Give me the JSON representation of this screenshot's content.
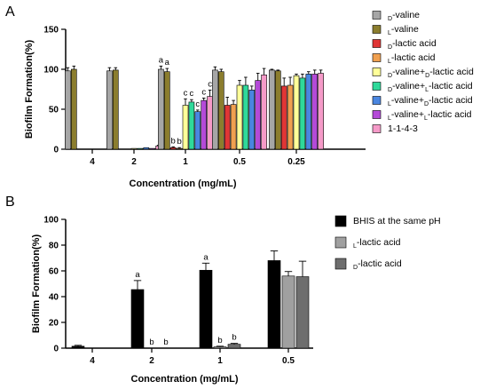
{
  "chart_data": [
    {
      "panel": "A",
      "type": "bar",
      "xlabel": "Concentration (mg/mL)",
      "ylabel": "Biofilm Formation(%)",
      "ylim": [
        0,
        150
      ],
      "yticks": [
        0,
        50,
        100,
        150
      ],
      "categories": [
        "4",
        "2",
        "1",
        "0.5",
        "0.25"
      ],
      "series": [
        {
          "name": "D-valine",
          "prefix": "D",
          "base": "-valine",
          "color": "#a6a6a6",
          "values": [
            98,
            98,
            100,
            99,
            99
          ],
          "errors": [
            4,
            4,
            4,
            4,
            1
          ],
          "labels": [
            "",
            "",
            "a",
            "",
            ""
          ]
        },
        {
          "name": "L-valine",
          "prefix": "L",
          "base": "-valine",
          "color": "#8b7d2e",
          "values": [
            100,
            99,
            97,
            97,
            98
          ],
          "errors": [
            4,
            3,
            4,
            3,
            1
          ],
          "labels": [
            "",
            "",
            "a",
            "",
            ""
          ]
        },
        {
          "name": "D-lactic acid",
          "prefix": "D",
          "base": "-lactic acid",
          "color": "#e03636",
          "values": [
            0,
            0,
            2,
            55,
            79
          ],
          "errors": [
            0,
            0,
            1,
            10,
            10
          ],
          "labels": [
            "",
            "",
            "b",
            "",
            ""
          ]
        },
        {
          "name": "L-lactic acid",
          "prefix": "L",
          "base": "-lactic acid",
          "color": "#f0a050",
          "values": [
            0,
            0,
            1,
            56,
            80
          ],
          "errors": [
            0,
            0,
            1,
            5,
            10
          ],
          "labels": [
            "",
            "",
            "b",
            "",
            ""
          ]
        },
        {
          "name": "D-valine+D-lactic acid",
          "prefix": "D",
          "base": "-valine+",
          "prefix2": "D",
          "base2": "-lactic acid",
          "color": "#ffff99",
          "values": [
            0,
            1,
            55,
            80,
            92
          ],
          "errors": [
            0,
            0,
            8,
            6,
            2
          ],
          "labels": [
            "",
            "",
            "c",
            "",
            ""
          ]
        },
        {
          "name": "D-valine+L-lactic acid",
          "prefix": "D",
          "base": "-valine+",
          "prefix2": "L",
          "base2": "-lactic acid",
          "color": "#2fd99a",
          "values": [
            0,
            1,
            59,
            80,
            89
          ],
          "errors": [
            0,
            0,
            3,
            10,
            5
          ],
          "labels": [
            "",
            "",
            "c",
            "",
            ""
          ]
        },
        {
          "name": "L-valine+D-lactic acid",
          "prefix": "L",
          "base": "-valine+",
          "prefix2": "D",
          "base2": "-lactic acid",
          "color": "#4a86e0",
          "values": [
            0,
            2,
            47,
            74,
            94
          ],
          "errors": [
            0,
            0,
            2,
            5,
            3
          ],
          "labels": [
            "",
            "",
            "c",
            "",
            ""
          ]
        },
        {
          "name": "L-valine+L-lactic acid",
          "prefix": "L",
          "base": "-valine+",
          "prefix2": "L",
          "base2": "-lactic acid",
          "color": "#b44ad8",
          "values": [
            0,
            1,
            61,
            86,
            94
          ],
          "errors": [
            0,
            0,
            3,
            9,
            5
          ],
          "labels": [
            "",
            "",
            "c",
            "",
            ""
          ]
        },
        {
          "name": "1-1-4-3",
          "prefix": "",
          "base": "1-1-4-3",
          "color": "#f59ac8",
          "values": [
            0,
            4,
            66,
            93,
            95
          ],
          "errors": [
            0,
            1,
            8,
            8,
            4
          ],
          "labels": [
            "",
            "",
            "c",
            "",
            ""
          ]
        }
      ]
    },
    {
      "panel": "B",
      "type": "bar",
      "xlabel": "Concentration (mg/mL)",
      "ylabel": "Biofilm Formation(%)",
      "ylim": [
        0,
        100
      ],
      "yticks": [
        0,
        20,
        40,
        60,
        80,
        100
      ],
      "categories": [
        "4",
        "2",
        "1",
        "0.5"
      ],
      "series": [
        {
          "name": "BHIS at the same pH",
          "prefix": "",
          "base": "BHIS at the same pH",
          "color": "#000000",
          "values": [
            1.5,
            45.5,
            60.5,
            68
          ],
          "errors": [
            0.7,
            7,
            5.5,
            7.5
          ],
          "labels": [
            "",
            "a",
            "a",
            ""
          ]
        },
        {
          "name": "L-lactic acid",
          "prefix": "L",
          "base": "-lactic acid",
          "color": "#a0a0a0",
          "values": [
            0,
            0,
            1,
            56
          ],
          "errors": [
            0,
            0,
            0.5,
            3.5
          ],
          "labels": [
            "",
            "b",
            "b",
            ""
          ]
        },
        {
          "name": "D-lactic acid",
          "prefix": "D",
          "base": "-lactic acid",
          "color": "#6e6e6e",
          "values": [
            0,
            0,
            3,
            55.5
          ],
          "errors": [
            0,
            0,
            0.7,
            12
          ],
          "labels": [
            "",
            "b",
            "b",
            ""
          ]
        }
      ]
    }
  ]
}
